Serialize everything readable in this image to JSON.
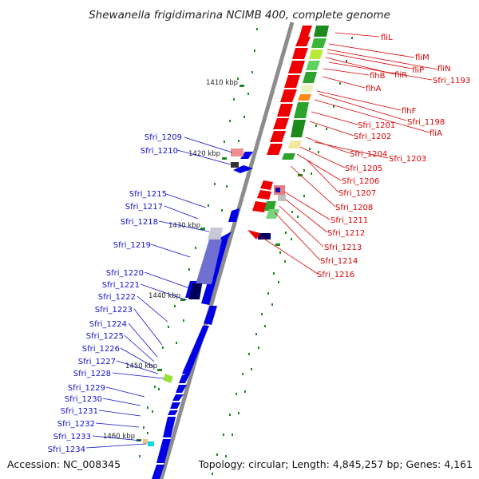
{
  "title": "Shewanella frigidimarina NCIMB 400, complete genome",
  "accession": "Accession: NC_008345",
  "topology": "Topology: circular; Length: 4,845,257 bp; Genes: 4,161",
  "ruler_labels": [
    "1410 kbp",
    "1420 kbp",
    "1430 kbp",
    "1440 kbp",
    "1450 kbp",
    "1460 kbp"
  ],
  "left_labels": [
    "Sfri_1209",
    "Sfri_1210",
    "Sfri_1215",
    "Sfri_1217",
    "Sfri_1218",
    "Sfri_1219",
    "Sfri_1220",
    "Sfri_1221",
    "Sfri_1222",
    "Sfri_1223",
    "Sfri_1224",
    "Sfri_1225",
    "Sfri_1226",
    "Sfri_1227",
    "Sfri_1228",
    "Sfri_1229",
    "Sfri_1230",
    "Sfri_1231",
    "Sfri_1232",
    "Sfri_1233",
    "Sfri_1234"
  ],
  "right_labels": [
    "fliL",
    "fliM",
    "fliN",
    "fliP",
    "fliR",
    "Sfri_1193",
    "flhB",
    "flhA",
    "flhF",
    "Sfri_1198",
    "fliA",
    "Sfri_1201",
    "Sfri_1202",
    "Sfri_1204",
    "Sfri_1203",
    "Sfri_1205",
    "Sfri_1206",
    "Sfri_1207",
    "Sfri_1208",
    "Sfri_1211",
    "Sfri_1212",
    "Sfri_1213",
    "Sfri_1214",
    "Sfri_1216"
  ],
  "colors": {
    "forward_strand": "#0000e6",
    "reverse_strand": "#ee0000",
    "backbone": "#8c8c8c",
    "tick": "#1a8a1a",
    "left_label": "#1010cc",
    "right_label": "#d80000"
  }
}
